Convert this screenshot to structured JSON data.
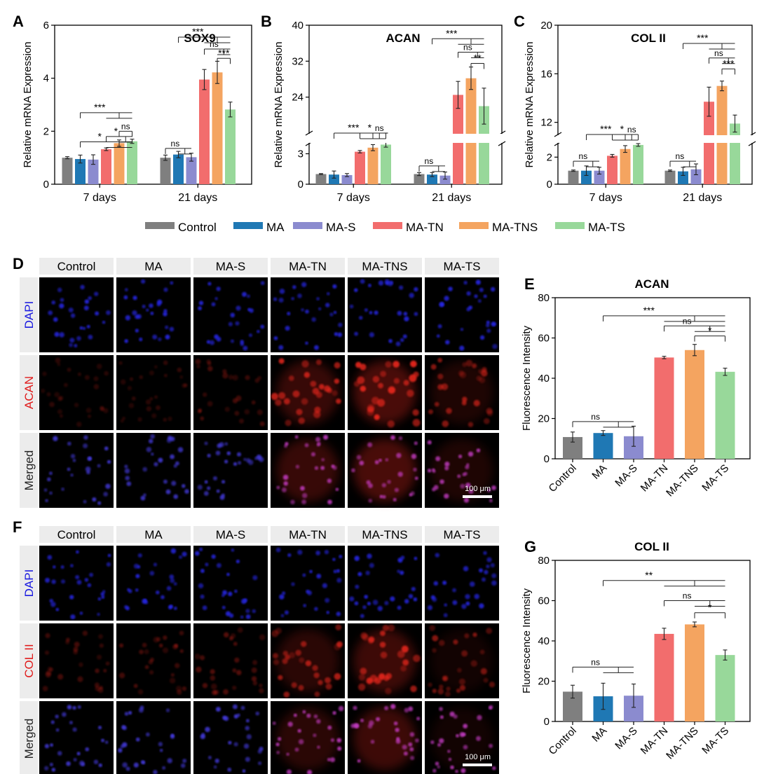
{
  "colors": {
    "Control": "#7f7f7f",
    "MA": "#1f78b4",
    "MA-S": "#8b8bcf",
    "MA-TN": "#f26d6d",
    "MA-TNS": "#f4a460",
    "MA-TS": "#98d89a"
  },
  "legend": [
    "Control",
    "MA",
    "MA-S",
    "MA-TN",
    "MA-TNS",
    "MA-TS"
  ],
  "panels": {
    "A": "A",
    "B": "B",
    "C": "C",
    "D": "D",
    "E": "E",
    "F": "F",
    "G": "G"
  },
  "chart_data": [
    {
      "panel": "A",
      "type": "bar",
      "title": "SOX9",
      "ylabel": "Relative mRNA Expression",
      "ylim": [
        0,
        6
      ],
      "yticks": [
        0,
        2,
        4,
        6
      ],
      "groups": [
        "7 days",
        "21 days"
      ],
      "series": [
        "Control",
        "MA",
        "MA-S",
        "MA-TN",
        "MA-TNS",
        "MA-TS"
      ],
      "values": [
        [
          1.0,
          0.95,
          0.93,
          1.32,
          1.55,
          1.62
        ],
        [
          1.0,
          1.12,
          1.02,
          3.95,
          4.22,
          2.82
        ]
      ],
      "errors": [
        [
          0.04,
          0.15,
          0.18,
          0.05,
          0.12,
          0.08
        ],
        [
          0.1,
          0.12,
          0.15,
          0.38,
          0.42,
          0.28
        ]
      ],
      "annotations": [
        {
          "text": "***",
          "g": 0,
          "from": 1,
          "to": [
            3,
            5
          ],
          "y": 2.7
        },
        {
          "text": "*",
          "g": 0,
          "from": 1,
          "to": [
            3,
            5
          ],
          "y": 1.6
        },
        {
          "text": "*",
          "g": 0,
          "from": 3,
          "to": [
            4,
            5
          ],
          "y": 1.8
        },
        {
          "text": "ns",
          "g": 0,
          "from": 4,
          "to": [
            5
          ],
          "y": 2.0
        },
        {
          "text": "ns",
          "g": 1,
          "from": 0,
          "to": [
            1,
            2
          ],
          "y": 1.35
        },
        {
          "text": "***",
          "g": 1,
          "from": 1,
          "to": [
            3,
            5
          ],
          "y": 5.55
        },
        {
          "text": "ns",
          "g": 1,
          "from": 3,
          "to": [
            4,
            5
          ],
          "y": 5.1
        },
        {
          "text": "***",
          "g": 1,
          "from": 4,
          "to": [
            5
          ],
          "y": 4.75
        }
      ]
    },
    {
      "panel": "B",
      "type": "bar",
      "title": "ACAN",
      "ylabel": "Relative mRNA Expression",
      "ylim": [
        0,
        40
      ],
      "yticks": [
        0,
        3,
        24,
        32,
        40
      ],
      "axis_break": {
        "low_max": 4,
        "high_min": 16
      },
      "groups": [
        "7 days",
        "21 days"
      ],
      "series": [
        "Control",
        "MA",
        "MA-S",
        "MA-TN",
        "MA-TNS",
        "MA-TS"
      ],
      "values": [
        [
          1.0,
          0.95,
          0.9,
          3.2,
          3.6,
          3.9
        ],
        [
          1.0,
          0.95,
          0.85,
          24.5,
          28.2,
          22.0
        ]
      ],
      "errors": [
        [
          0.05,
          0.35,
          0.15,
          0.12,
          0.3,
          0.25
        ],
        [
          0.15,
          0.2,
          0.35,
          3.0,
          2.5,
          4.0
        ]
      ],
      "annotations": [
        {
          "text": "***",
          "g": 0,
          "from": 1,
          "to": [
            3,
            5
          ],
          "y": 14
        },
        {
          "text": "*",
          "g": 0,
          "from": 3,
          "to": [
            4,
            5
          ],
          "y": 5
        },
        {
          "text": "ns",
          "g": 0,
          "from": 4,
          "to": [
            5
          ],
          "y": 7
        },
        {
          "text": "ns",
          "g": 1,
          "from": 0,
          "to": [
            1,
            2
          ],
          "y": 1.8
        },
        {
          "text": "***",
          "g": 1,
          "from": 1,
          "to": [
            3,
            5
          ],
          "y": 37
        },
        {
          "text": "ns",
          "g": 1,
          "from": 3,
          "to": [
            4,
            5
          ],
          "y": 34
        },
        {
          "text": "**",
          "g": 1,
          "from": 4,
          "to": [
            5
          ],
          "y": 31.5
        }
      ]
    },
    {
      "panel": "C",
      "type": "bar",
      "title": "COL II",
      "ylabel": "Relative mRNA Expression",
      "ylim": [
        0,
        20
      ],
      "yticks": [
        0,
        2,
        12,
        16,
        20
      ],
      "axis_break": {
        "low_max": 3,
        "high_min": 11
      },
      "groups": [
        "7 days",
        "21 days"
      ],
      "series": [
        "Control",
        "MA",
        "MA-S",
        "MA-TN",
        "MA-TNS",
        "MA-TS"
      ],
      "values": [
        [
          1.0,
          1.0,
          1.0,
          2.1,
          2.6,
          2.9
        ],
        [
          1.0,
          0.95,
          1.1,
          13.7,
          15.0,
          11.9
        ]
      ],
      "errors": [
        [
          0.05,
          0.35,
          0.25,
          0.1,
          0.25,
          0.1
        ],
        [
          0.05,
          0.3,
          0.4,
          1.2,
          0.4,
          0.7
        ]
      ],
      "annotations": [
        {
          "text": "ns",
          "g": 0,
          "from": 0,
          "to": [
            1,
            2
          ],
          "y": 1.7
        },
        {
          "text": "***",
          "g": 0,
          "from": 1,
          "to": [
            3,
            5
          ],
          "y": 7
        },
        {
          "text": "*",
          "g": 0,
          "from": 3,
          "to": [
            4,
            5
          ],
          "y": 4
        },
        {
          "text": "ns",
          "g": 0,
          "from": 4,
          "to": [
            5
          ],
          "y": 6
        },
        {
          "text": "ns",
          "g": 1,
          "from": 0,
          "to": [
            1,
            2
          ],
          "y": 1.7
        },
        {
          "text": "***",
          "g": 1,
          "from": 1,
          "to": [
            3,
            5
          ],
          "y": 18.5
        },
        {
          "text": "ns",
          "g": 1,
          "from": 3,
          "to": [
            4,
            5
          ],
          "y": 17.3
        },
        {
          "text": "***",
          "g": 1,
          "from": 4,
          "to": [
            5
          ],
          "y": 16.4
        }
      ]
    },
    {
      "panel": "E",
      "type": "bar",
      "title": "ACAN",
      "ylabel": "Fluorescence Intensity",
      "ylim": [
        0,
        80
      ],
      "yticks": [
        0,
        20,
        40,
        60,
        80
      ],
      "categories": [
        "Control",
        "MA",
        "MA-S",
        "MA-TN",
        "MA-TNS",
        "MA-TS"
      ],
      "values": [
        10.8,
        12.8,
        11.2,
        50.3,
        54.0,
        43.2
      ],
      "errors": [
        2.5,
        1.2,
        5.0,
        0.6,
        2.8,
        1.8
      ],
      "annotations": [
        {
          "text": "ns",
          "from": 0,
          "to": [
            1,
            2
          ],
          "y": 18.5
        },
        {
          "text": "***",
          "from": 1,
          "to": [
            3,
            5
          ],
          "y": 71
        },
        {
          "text": "ns",
          "from": 3,
          "to": [
            4,
            5
          ],
          "y": 66
        },
        {
          "text": "*",
          "from": 4,
          "to": [
            5
          ],
          "y": 61
        }
      ]
    },
    {
      "panel": "G",
      "type": "bar",
      "title": "COL II",
      "ylabel": "Fluorescence Intensity",
      "ylim": [
        0,
        80
      ],
      "yticks": [
        0,
        20,
        40,
        60,
        80
      ],
      "categories": [
        "Control",
        "MA",
        "MA-S",
        "MA-TN",
        "MA-TNS",
        "MA-TS"
      ],
      "values": [
        14.8,
        12.5,
        12.8,
        43.5,
        48.2,
        33.0
      ],
      "errors": [
        3.2,
        6.5,
        5.8,
        2.8,
        1.2,
        2.5
      ],
      "annotations": [
        {
          "text": "ns",
          "from": 0,
          "to": [
            1,
            2
          ],
          "y": 27
        },
        {
          "text": "**",
          "from": 1,
          "to": [
            3,
            5
          ],
          "y": 70
        },
        {
          "text": "ns",
          "from": 3,
          "to": [
            4,
            5
          ],
          "y": 60
        },
        {
          "text": "*",
          "from": 4,
          "to": [
            5
          ],
          "y": 54
        }
      ]
    }
  ],
  "micrographs": {
    "D": {
      "columns": [
        "Control",
        "MA",
        "MA-S",
        "MA-TN",
        "MA-TNS",
        "MA-TS"
      ],
      "rows": [
        "DAPI",
        "ACAN",
        "Merged"
      ],
      "row_colors": [
        "#1a1ae0",
        "#e01a1a",
        "#222222"
      ],
      "signal": [
        0.08,
        0.1,
        0.18,
        0.75,
        0.9,
        0.55
      ],
      "scale_bar": "100 μm"
    },
    "F": {
      "columns": [
        "Control",
        "MA",
        "MA-S",
        "MA-TN",
        "MA-TNS",
        "MA-TS"
      ],
      "rows": [
        "DAPI",
        "COL II",
        "Merged"
      ],
      "row_colors": [
        "#1a1ae0",
        "#e01a1a",
        "#222222"
      ],
      "signal": [
        0.18,
        0.22,
        0.25,
        0.65,
        0.8,
        0.45
      ],
      "scale_bar": "100 μm"
    }
  }
}
